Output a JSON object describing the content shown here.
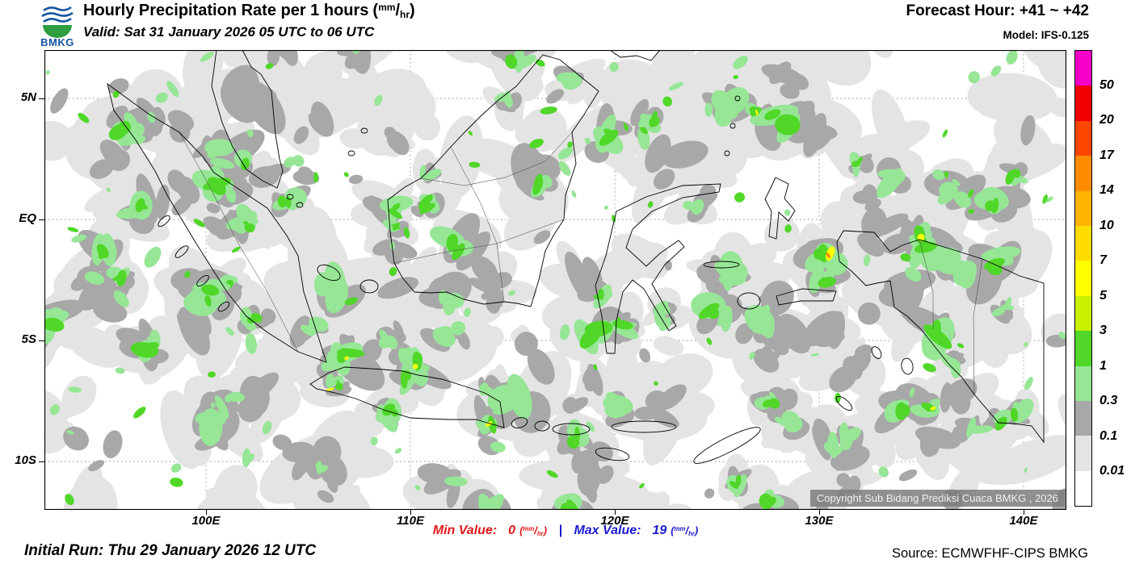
{
  "header": {
    "logo_text": "BMKG",
    "title": "Hourly Precipitation Rate per 1 hours",
    "valid": "Valid: Sat 31 January 2026 05 UTC to 06 UTC",
    "forecast_hour": "Forecast Hour: +41 ~ +42",
    "model": "Model: IFS-0.125"
  },
  "unit": {
    "open": "(",
    "sup": "mm",
    "slash": "/",
    "sub": "hr",
    "close": ")"
  },
  "map": {
    "y_ticks": [
      "5N",
      "EQ",
      "5S",
      "10S"
    ],
    "x_ticks": [
      "100E",
      "110E",
      "120E",
      "130E",
      "140E"
    ],
    "copyright": "Copyright Sub Bidang Prediksi Cuaca BMKG , 2026"
  },
  "colorbar": {
    "labels": [
      "50",
      "20",
      "17",
      "14",
      "10",
      "7",
      "5",
      "3",
      "1",
      "0.3",
      "0.1",
      "0.01"
    ],
    "colors": [
      "#f400c8",
      "#f00000",
      "#ff4600",
      "#ff8c00",
      "#ffb400",
      "#ffdc00",
      "#ffff00",
      "#c8f000",
      "#50d728",
      "#96e696",
      "#a8a8a8",
      "#e4e4e4",
      "#ffffff"
    ]
  },
  "footer": {
    "min_label": "Min Value:",
    "min_value": "0",
    "separator": "|",
    "max_label": "Max Value:",
    "max_value": "19",
    "initial_run": "Initial Run: Thu 29 January 2026 12 UTC",
    "source": "Source: ECMWFHF-CIPS BMKG"
  }
}
